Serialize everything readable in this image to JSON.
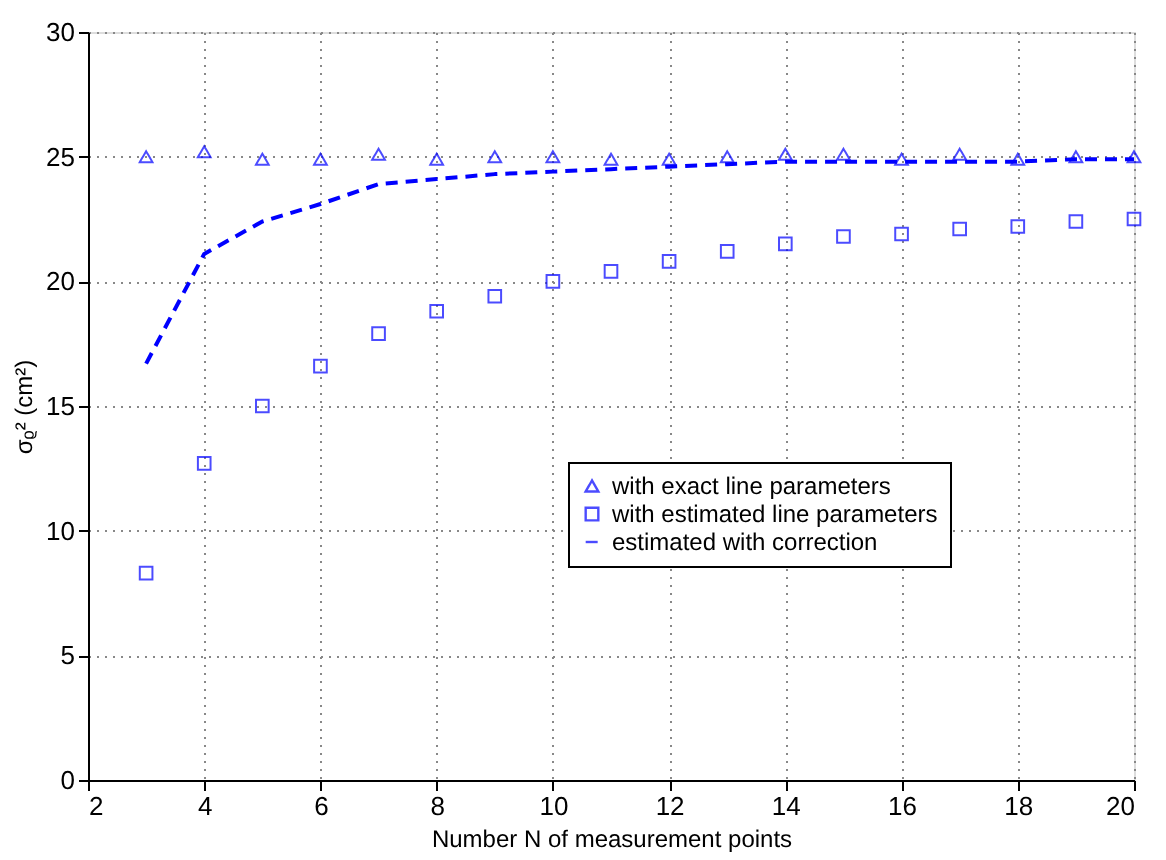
{
  "chart_data": {
    "type": "scatter",
    "x": [
      3,
      4,
      5,
      6,
      7,
      8,
      9,
      10,
      11,
      12,
      13,
      14,
      15,
      16,
      17,
      18,
      19,
      20
    ],
    "series": [
      {
        "name": "with exact line parameters",
        "marker": "triangle",
        "color": "#0000ff",
        "values": [
          25.0,
          25.2,
          24.9,
          24.9,
          25.1,
          24.9,
          25.0,
          25.0,
          24.9,
          24.9,
          25.0,
          25.1,
          25.1,
          24.9,
          25.1,
          24.9,
          25.0,
          25.0
        ]
      },
      {
        "name": "with estimated line parameters",
        "marker": "square",
        "color": "#0000ff",
        "values": [
          8.3,
          12.7,
          15.0,
          16.6,
          17.9,
          18.8,
          19.4,
          20.0,
          20.4,
          20.8,
          21.2,
          21.5,
          21.8,
          21.9,
          22.1,
          22.2,
          22.4,
          22.5
        ]
      },
      {
        "name": "estimated with correction",
        "type": "line",
        "line_style": "dashed",
        "color": "#0000ff",
        "values": [
          16.7,
          21.1,
          22.4,
          23.1,
          23.9,
          24.1,
          24.3,
          24.4,
          24.5,
          24.6,
          24.7,
          24.8,
          24.8,
          24.8,
          24.8,
          24.8,
          24.9,
          24.9
        ]
      }
    ],
    "xlabel": "Number N of measurement points",
    "ylabel": "σᵨ² (cm²)",
    "xlim": [
      2,
      20
    ],
    "xticks": [
      2,
      4,
      6,
      8,
      10,
      12,
      14,
      16,
      18,
      20
    ],
    "ylim": [
      0,
      30
    ],
    "yticks": [
      0,
      5,
      10,
      15,
      20,
      25,
      30
    ],
    "grid": true,
    "legend": "right"
  }
}
